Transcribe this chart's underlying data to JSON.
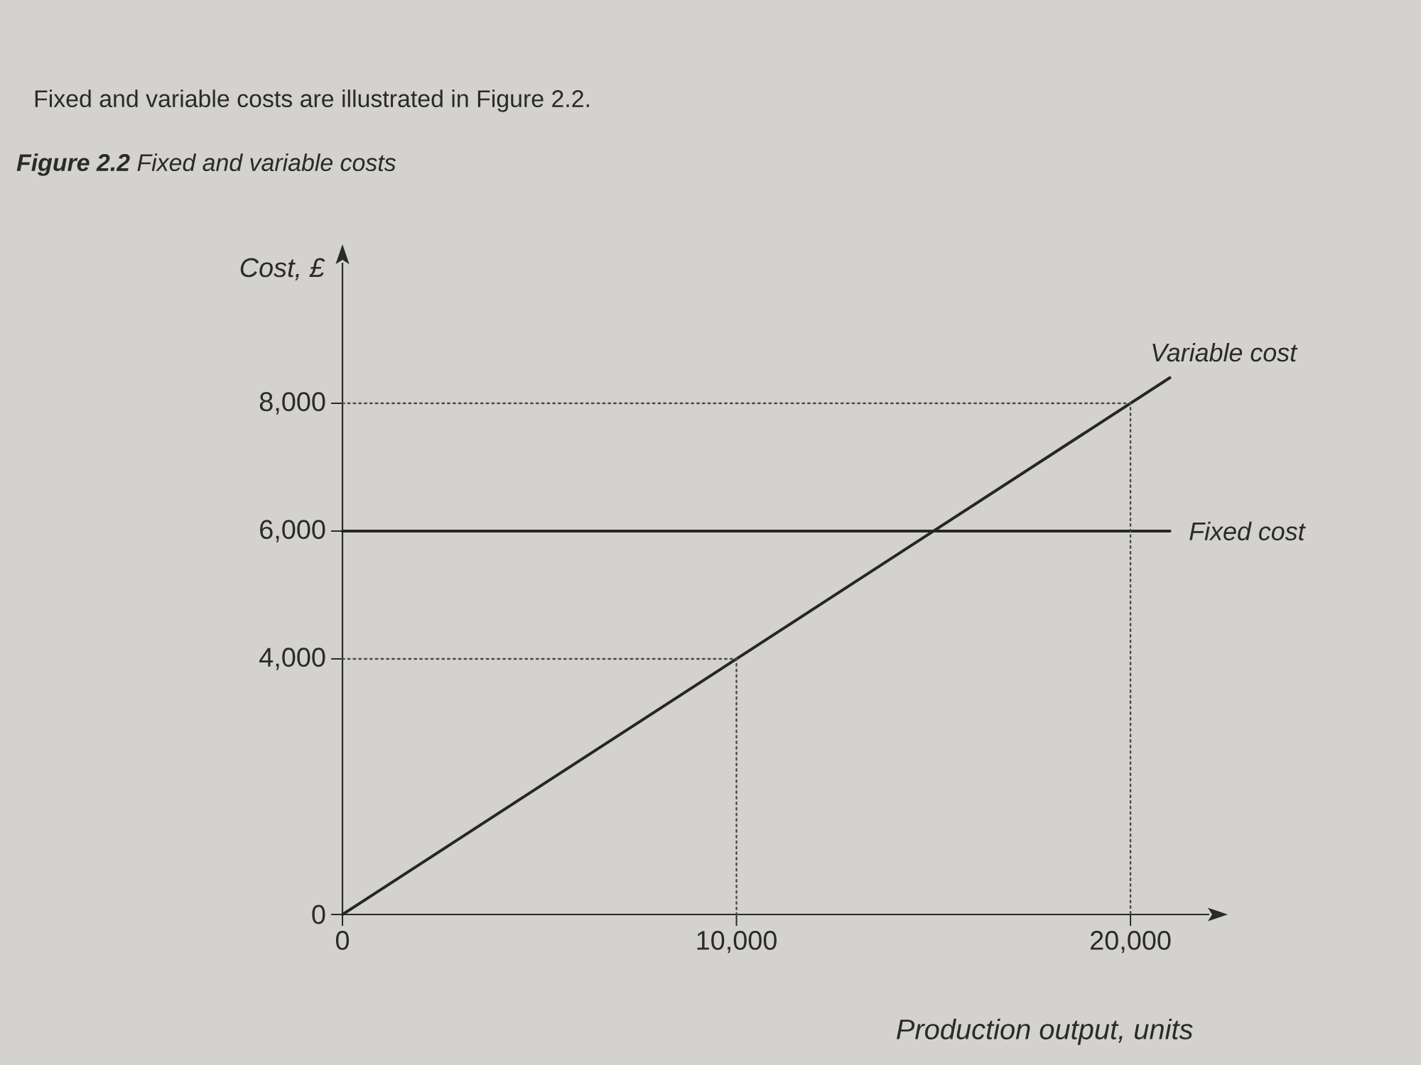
{
  "chart_data": {
    "type": "line",
    "title": "**Figure 2.2** Fixed and variable costs",
    "xlabel": "Production output, units",
    "ylabel": "Cost, £",
    "annotations": [
      "Fixed and variable costs are illustrated in Figure 2.2."
    ],
    "xlim": [
      0,
      22000
    ],
    "ylim": [
      0,
      10200
    ],
    "xticks": [
      0,
      {
        "value": 10000,
        "label": "10,000"
      },
      {
        "value": 20000,
        "label": "20,000"
      }
    ],
    "yticks": [
      0,
      {
        "value": 4000,
        "label": "4,000"
      },
      {
        "value": 6000,
        "label": "6,000"
      },
      {
        "value": 8000,
        "label": "8,000"
      }
    ],
    "legend": false,
    "marker": "none",
    "series": [
      {
        "name": "Variable cost",
        "color": "#262626",
        "x": [
          0,
          21000
        ],
        "values": [
          0,
          8400
        ],
        "line_style": "solid"
      },
      {
        "name": "Fixed cost",
        "color": "#262626",
        "x": [
          0,
          21000
        ],
        "values": [
          6000,
          6000
        ],
        "line_style": "solid"
      },
      {
        "color": "#4a4a4a",
        "x": [
          0,
          10000,
          10000
        ],
        "values": [
          4000,
          4000,
          0
        ],
        "line_style": "dotted"
      },
      {
        "color": "#4a4a4a",
        "x": [
          0,
          20000,
          20000
        ],
        "values": [
          8000,
          8000,
          0
        ],
        "line_style": "dotted"
      }
    ]
  }
}
